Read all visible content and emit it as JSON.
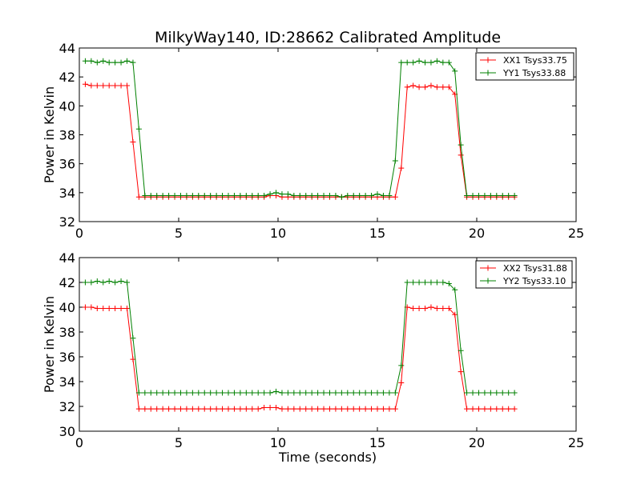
{
  "colors": {
    "red": "#ff0000",
    "green": "#008000"
  },
  "chart_data": [
    {
      "type": "line",
      "title": "MilkyWay140, ID:28662 Calibrated Amplitude",
      "xlabel": "",
      "ylabel": "Power in Kelvin",
      "xlim": [
        0,
        25
      ],
      "ylim": [
        32,
        44
      ],
      "xticks": [
        0,
        5,
        10,
        15,
        20,
        25
      ],
      "yticks": [
        32,
        34,
        36,
        38,
        40,
        42,
        44
      ],
      "legend_position": "top-right",
      "x": [
        0.3,
        0.6,
        0.9,
        1.2,
        1.5,
        1.8,
        2.1,
        2.4,
        2.7,
        3.0,
        3.3,
        3.6,
        3.9,
        4.2,
        4.5,
        4.8,
        5.1,
        5.4,
        5.7,
        6.0,
        6.3,
        6.6,
        6.9,
        7.2,
        7.5,
        7.8,
        8.1,
        8.4,
        8.7,
        9.0,
        9.3,
        9.6,
        9.9,
        10.2,
        10.5,
        10.8,
        11.1,
        11.4,
        11.7,
        12.0,
        12.3,
        12.6,
        12.9,
        13.2,
        13.5,
        13.8,
        14.1,
        14.4,
        14.7,
        15.0,
        15.3,
        15.6,
        15.9,
        16.2,
        16.5,
        16.8,
        17.1,
        17.4,
        17.7,
        18.0,
        18.3,
        18.6,
        18.9,
        19.2,
        19.5,
        19.8,
        20.1,
        20.4,
        20.7,
        21.0,
        21.3,
        21.6,
        21.9
      ],
      "series": [
        {
          "name": "XX1 Tsys33.75",
          "color": "#ff0000",
          "values": [
            41.5,
            41.4,
            41.4,
            41.4,
            41.4,
            41.4,
            41.4,
            41.4,
            37.5,
            33.7,
            33.7,
            33.7,
            33.7,
            33.7,
            33.7,
            33.7,
            33.7,
            33.7,
            33.7,
            33.7,
            33.7,
            33.7,
            33.7,
            33.7,
            33.7,
            33.7,
            33.7,
            33.7,
            33.7,
            33.7,
            33.7,
            33.8,
            33.8,
            33.7,
            33.7,
            33.7,
            33.7,
            33.7,
            33.7,
            33.7,
            33.7,
            33.7,
            33.7,
            33.7,
            33.7,
            33.7,
            33.7,
            33.7,
            33.7,
            33.7,
            33.7,
            33.7,
            33.7,
            35.7,
            41.3,
            41.4,
            41.3,
            41.3,
            41.4,
            41.3,
            41.3,
            41.3,
            40.8,
            36.6,
            33.7,
            33.7,
            33.7,
            33.7,
            33.7,
            33.7,
            33.7,
            33.7,
            33.7
          ]
        },
        {
          "name": "YY1 Tsys33.88",
          "color": "#008000",
          "values": [
            43.1,
            43.1,
            43.0,
            43.1,
            43.0,
            43.0,
            43.0,
            43.1,
            43.0,
            38.4,
            33.8,
            33.8,
            33.8,
            33.8,
            33.8,
            33.8,
            33.8,
            33.8,
            33.8,
            33.8,
            33.8,
            33.8,
            33.8,
            33.8,
            33.8,
            33.8,
            33.8,
            33.8,
            33.8,
            33.8,
            33.8,
            33.9,
            34.0,
            33.9,
            33.9,
            33.8,
            33.8,
            33.8,
            33.8,
            33.8,
            33.8,
            33.8,
            33.8,
            33.7,
            33.8,
            33.8,
            33.8,
            33.8,
            33.8,
            33.9,
            33.8,
            33.8,
            36.2,
            43.0,
            43.0,
            43.0,
            43.1,
            43.0,
            43.0,
            43.1,
            43.0,
            43.0,
            42.4,
            37.3,
            33.8,
            33.8,
            33.8,
            33.8,
            33.8,
            33.8,
            33.8,
            33.8,
            33.8
          ]
        }
      ]
    },
    {
      "type": "line",
      "title": "",
      "xlabel": "Time (seconds)",
      "ylabel": "Power in Kelvin",
      "xlim": [
        0,
        25
      ],
      "ylim": [
        30,
        44
      ],
      "xticks": [
        0,
        5,
        10,
        15,
        20,
        25
      ],
      "yticks": [
        30,
        32,
        34,
        36,
        38,
        40,
        42,
        44
      ],
      "legend_position": "top-right",
      "x": [
        0.3,
        0.6,
        0.9,
        1.2,
        1.5,
        1.8,
        2.1,
        2.4,
        2.7,
        3.0,
        3.3,
        3.6,
        3.9,
        4.2,
        4.5,
        4.8,
        5.1,
        5.4,
        5.7,
        6.0,
        6.3,
        6.6,
        6.9,
        7.2,
        7.5,
        7.8,
        8.1,
        8.4,
        8.7,
        9.0,
        9.3,
        9.6,
        9.9,
        10.2,
        10.5,
        10.8,
        11.1,
        11.4,
        11.7,
        12.0,
        12.3,
        12.6,
        12.9,
        13.2,
        13.5,
        13.8,
        14.1,
        14.4,
        14.7,
        15.0,
        15.3,
        15.6,
        15.9,
        16.2,
        16.5,
        16.8,
        17.1,
        17.4,
        17.7,
        18.0,
        18.3,
        18.6,
        18.9,
        19.2,
        19.5,
        19.8,
        20.1,
        20.4,
        20.7,
        21.0,
        21.3,
        21.6,
        21.9
      ],
      "series": [
        {
          "name": "XX2 Tsys31.88",
          "color": "#ff0000",
          "values": [
            40.0,
            40.0,
            39.9,
            39.9,
            39.9,
            39.9,
            39.9,
            39.9,
            35.8,
            31.8,
            31.8,
            31.8,
            31.8,
            31.8,
            31.8,
            31.8,
            31.8,
            31.8,
            31.8,
            31.8,
            31.8,
            31.8,
            31.8,
            31.8,
            31.8,
            31.8,
            31.8,
            31.8,
            31.8,
            31.8,
            31.9,
            31.9,
            31.9,
            31.8,
            31.8,
            31.8,
            31.8,
            31.8,
            31.8,
            31.8,
            31.8,
            31.8,
            31.8,
            31.8,
            31.8,
            31.8,
            31.8,
            31.8,
            31.8,
            31.8,
            31.8,
            31.8,
            31.8,
            33.9,
            40.0,
            39.9,
            39.9,
            39.9,
            40.0,
            39.9,
            39.9,
            39.9,
            39.4,
            34.8,
            31.8,
            31.8,
            31.8,
            31.8,
            31.8,
            31.8,
            31.8,
            31.8,
            31.8
          ]
        },
        {
          "name": "YY2 Tsys33.10",
          "color": "#008000",
          "values": [
            42.0,
            42.0,
            42.1,
            42.0,
            42.1,
            42.0,
            42.1,
            42.0,
            37.5,
            33.1,
            33.1,
            33.1,
            33.1,
            33.1,
            33.1,
            33.1,
            33.1,
            33.1,
            33.1,
            33.1,
            33.1,
            33.1,
            33.1,
            33.1,
            33.1,
            33.1,
            33.1,
            33.1,
            33.1,
            33.1,
            33.1,
            33.1,
            33.2,
            33.1,
            33.1,
            33.1,
            33.1,
            33.1,
            33.1,
            33.1,
            33.1,
            33.1,
            33.1,
            33.1,
            33.1,
            33.1,
            33.1,
            33.1,
            33.1,
            33.1,
            33.1,
            33.1,
            33.1,
            35.3,
            42.0,
            42.0,
            42.0,
            42.0,
            42.0,
            42.0,
            42.0,
            41.9,
            41.4,
            36.5,
            33.1,
            33.1,
            33.1,
            33.1,
            33.1,
            33.1,
            33.1,
            33.1,
            33.1
          ]
        }
      ]
    }
  ]
}
